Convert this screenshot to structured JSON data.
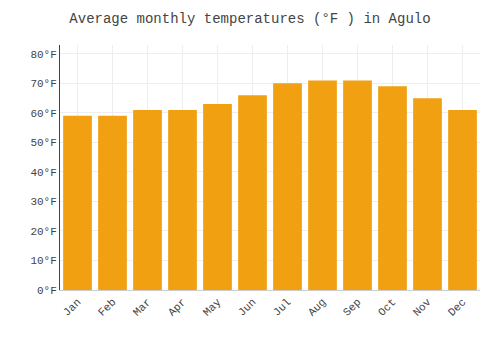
{
  "chart_data": {
    "type": "bar",
    "title": "Average monthly temperatures (°F ) in Agulo",
    "categories": [
      "Jan",
      "Feb",
      "Mar",
      "Apr",
      "May",
      "Jun",
      "Jul",
      "Aug",
      "Sep",
      "Oct",
      "Nov",
      "Dec"
    ],
    "values": [
      59,
      59,
      61,
      61,
      63,
      66,
      70,
      71,
      71,
      69,
      65,
      61
    ],
    "color": "#F0A010",
    "ylim": [
      0,
      83
    ],
    "yticks": [
      {
        "value": 0,
        "label": "0°F"
      },
      {
        "value": 10,
        "label": "10°F"
      },
      {
        "value": 20,
        "label": "20°F"
      },
      {
        "value": 30,
        "label": "30°F"
      },
      {
        "value": 40,
        "label": "40°F"
      },
      {
        "value": 50,
        "label": "50°F"
      },
      {
        "value": 60,
        "label": "60°F"
      },
      {
        "value": 70,
        "label": "70°F"
      },
      {
        "value": 80,
        "label": "80°F"
      }
    ],
    "grid": true
  }
}
